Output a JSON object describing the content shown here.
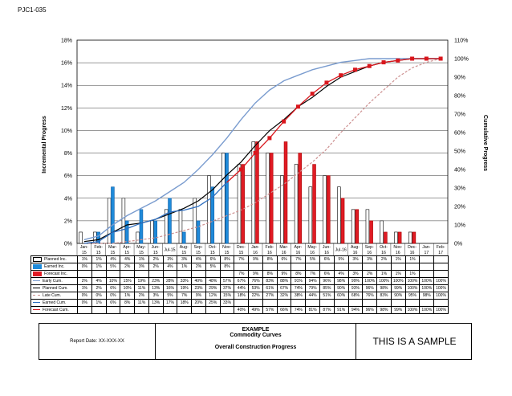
{
  "doc_id": "PJC1-035",
  "footer": {
    "report_date": "Report Date: XX-XXX-XX",
    "example": "EXAMPLE",
    "subtitle": "Commodity Curves",
    "title": "Overall Construction Progress",
    "sample": "THIS IS A SAMPLE"
  },
  "colors": {
    "planned_bar": "#ffffff",
    "earned_bar": "#1f8ad9",
    "forecast_bar": "#e01b24",
    "early_curve": "#7a9ccf",
    "planned_curve": "#000000",
    "late_curve": "#cc8f8f",
    "earned_curve": "#2f6fc0",
    "forecast_curve": "#d9161c"
  },
  "chart_data": {
    "type": "bar",
    "title": "",
    "ylabel": "Incremental Progress",
    "y2label": "Cumulative Progress",
    "ylim": [
      0,
      18
    ],
    "y2lim": [
      0,
      110
    ],
    "yticks": [
      "0%",
      "2%",
      "4%",
      "6%",
      "8%",
      "10%",
      "12%",
      "14%",
      "16%",
      "18%"
    ],
    "y2ticks": [
      "0%",
      "10%",
      "20%",
      "30%",
      "40%",
      "50%",
      "60%",
      "70%",
      "80%",
      "90%",
      "100%",
      "110%"
    ],
    "grid": true,
    "categories": [
      "Jan-15",
      "Feb-15",
      "Mar-15",
      "Apr-15",
      "May-15",
      "Jun-15",
      "Jul-15",
      "Aug-15",
      "Sep-15",
      "Oct-15",
      "Nov-15",
      "Dec-15",
      "Jan-16",
      "Feb-16",
      "Mar-16",
      "Apr-16",
      "May-16",
      "Jun-16",
      "Jul-16",
      "Aug-16",
      "Sep-16",
      "Oct-16",
      "Nov-16",
      "Dec-16",
      "Jan-17",
      "Feb-17"
    ],
    "tick_labels": [
      [
        "Jan-",
        "15"
      ],
      [
        "Feb-",
        "15"
      ],
      [
        "Mar-",
        "15"
      ],
      [
        "Apr-",
        "15"
      ],
      [
        "May-",
        "15"
      ],
      [
        "Jun-",
        "15"
      ],
      [
        "Jul-15",
        ""
      ],
      [
        "Aug-",
        "15"
      ],
      [
        "Sep-",
        "15"
      ],
      [
        "Oct-",
        "15"
      ],
      [
        "Nov-",
        "15"
      ],
      [
        "Dec-",
        "15"
      ],
      [
        "Jan-",
        "16"
      ],
      [
        "Feb-",
        "16"
      ],
      [
        "Mar-",
        "16"
      ],
      [
        "Apr-",
        "16"
      ],
      [
        "May-",
        "16"
      ],
      [
        "Jun-",
        "16"
      ],
      [
        "Jul-16",
        ""
      ],
      [
        "Aug-",
        "16"
      ],
      [
        "Sep-",
        "16"
      ],
      [
        "Oct-",
        "16"
      ],
      [
        "Nov-",
        "16"
      ],
      [
        "Dec-",
        "16"
      ],
      [
        "Jan-",
        "17"
      ],
      [
        "Feb-",
        "17"
      ]
    ],
    "bars": [
      {
        "name": "Planned Inc.",
        "values": [
          1,
          1,
          4,
          4,
          1,
          2,
          3,
          3,
          4,
          6,
          8,
          7,
          9,
          8,
          6,
          7,
          5,
          6,
          5,
          3,
          3,
          2,
          1,
          1,
          null,
          null
        ]
      },
      {
        "name": "Earned Inc.",
        "values": [
          0,
          1,
          5,
          2,
          3,
          2,
          4,
          1,
          2,
          5,
          8,
          null,
          null,
          null,
          null,
          null,
          null,
          null,
          null,
          null,
          null,
          null,
          null,
          null,
          null,
          null
        ]
      },
      {
        "name": "Forecast Inc.",
        "values": [
          null,
          null,
          null,
          null,
          null,
          null,
          null,
          null,
          null,
          null,
          null,
          7,
          9,
          8,
          9,
          8,
          7,
          6,
          4,
          3,
          2,
          1,
          1,
          1,
          null,
          null
        ]
      }
    ],
    "table_rows": [
      {
        "name": "Planned Inc.",
        "legend": "planned_bar",
        "cells": [
          "1%",
          "1%",
          "4%",
          "4%",
          "1%",
          "2%",
          "3%",
          "3%",
          "4%",
          "6%",
          "8%",
          "7%",
          "9%",
          "8%",
          "6%",
          "7%",
          "5%",
          "6%",
          "5%",
          "3%",
          "3%",
          "2%",
          "1%",
          "1%",
          "",
          ""
        ]
      },
      {
        "name": "Earned Inc.",
        "legend": "earned_bar",
        "cells": [
          "0%",
          "1%",
          "5%",
          "2%",
          "3%",
          "2%",
          "4%",
          "1%",
          "2%",
          "5%",
          "8%",
          "",
          "",
          "",
          "",
          "",
          "",
          "",
          "",
          "",
          "",
          "",
          "",
          "",
          "",
          ""
        ]
      },
      {
        "name": "Forecast Inc.",
        "legend": "forecast_bar",
        "cells": [
          "",
          "",
          "",
          "",
          "",
          "",
          "",
          "",
          "",
          "",
          "",
          "7%",
          "9%",
          "8%",
          "9%",
          "8%",
          "7%",
          "6%",
          "4%",
          "3%",
          "2%",
          "1%",
          "1%",
          "1%",
          "",
          ""
        ]
      },
      {
        "name": "Early Cum.",
        "legend": "early_curve",
        "cells": [
          "2%",
          "4%",
          "10%",
          "15%",
          "19%",
          "23%",
          "28%",
          "33%",
          "40%",
          "48%",
          "57%",
          "67%",
          "76%",
          "83%",
          "88%",
          "91%",
          "94%",
          "96%",
          "98%",
          "99%",
          "100%",
          "100%",
          "100%",
          "100%",
          "100%",
          "100%"
        ]
      },
      {
        "name": "Planned Cum.",
        "legend": "planned_curve",
        "cells": [
          "1%",
          "2%",
          "6%",
          "10%",
          "11%",
          "13%",
          "16%",
          "19%",
          "23%",
          "29%",
          "37%",
          "44%",
          "53%",
          "61%",
          "67%",
          "74%",
          "79%",
          "85%",
          "90%",
          "93%",
          "96%",
          "98%",
          "99%",
          "100%",
          "100%",
          "100%"
        ]
      },
      {
        "name": "Late Cum.",
        "legend": "late_curve",
        "cells": [
          "0%",
          "0%",
          "0%",
          "1%",
          "2%",
          "3%",
          "5%",
          "7%",
          "9%",
          "12%",
          "15%",
          "18%",
          "22%",
          "27%",
          "32%",
          "38%",
          "44%",
          "51%",
          "60%",
          "68%",
          "76%",
          "83%",
          "90%",
          "95%",
          "98%",
          "100%"
        ]
      },
      {
        "name": "Earned Cum.",
        "legend": "earned_curve",
        "cells": [
          "0%",
          "1%",
          "6%",
          "8%",
          "11%",
          "13%",
          "17%",
          "18%",
          "20%",
          "25%",
          "33%",
          "",
          "",
          "",
          "",
          "",
          "",
          "",
          "",
          "",
          "",
          "",
          "",
          "",
          "",
          ""
        ]
      },
      {
        "name": "Forecast Cum.",
        "legend": "forecast_curve",
        "cells": [
          "",
          "",
          "",
          "",
          "",
          "",
          "",
          "",
          "",
          "",
          "",
          "40%",
          "49%",
          "57%",
          "66%",
          "74%",
          "81%",
          "87%",
          "91%",
          "94%",
          "96%",
          "98%",
          "99%",
          "100%",
          "100%",
          "100%"
        ]
      }
    ],
    "curves": [
      {
        "name": "Early Cum.",
        "values": [
          2,
          4,
          10,
          15,
          19,
          23,
          28,
          33,
          40,
          48,
          57,
          67,
          76,
          83,
          88,
          91,
          94,
          96,
          98,
          99,
          100,
          100,
          100,
          100,
          100,
          100
        ]
      },
      {
        "name": "Planned Cum.",
        "values": [
          1,
          2,
          6,
          10,
          11,
          13,
          16,
          19,
          23,
          29,
          37,
          44,
          53,
          61,
          67,
          74,
          79,
          85,
          90,
          93,
          96,
          98,
          99,
          100,
          100,
          100
        ]
      },
      {
        "name": "Late Cum.",
        "values": [
          0,
          0,
          0,
          1,
          2,
          3,
          5,
          7,
          9,
          12,
          15,
          18,
          22,
          27,
          32,
          38,
          44,
          51,
          60,
          68,
          76,
          83,
          90,
          95,
          98,
          100
        ]
      },
      {
        "name": "Earned Cum.",
        "values": [
          0,
          1,
          6,
          8,
          11,
          13,
          17,
          18,
          20,
          25,
          33,
          null,
          null,
          null,
          null,
          null,
          null,
          null,
          null,
          null,
          null,
          null,
          null,
          null,
          null,
          null
        ]
      },
      {
        "name": "Forecast Cum.",
        "values": [
          null,
          null,
          null,
          null,
          null,
          null,
          null,
          null,
          null,
          null,
          33,
          40,
          49,
          57,
          66,
          74,
          81,
          87,
          91,
          94,
          96,
          98,
          99,
          100,
          100,
          100
        ]
      }
    ]
  }
}
